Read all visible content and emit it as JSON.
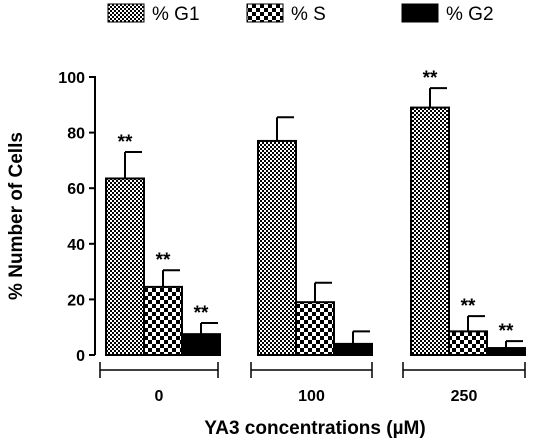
{
  "chart_data": {
    "type": "bar",
    "categories": [
      "0",
      "100",
      "250"
    ],
    "series": [
      {
        "name": "% G1",
        "values": [
          63.5,
          77,
          89
        ],
        "errors": [
          9.5,
          8.5,
          7
        ],
        "significance": [
          "**",
          "",
          "**"
        ]
      },
      {
        "name": "% S",
        "values": [
          24.5,
          19,
          8.5
        ],
        "errors": [
          6,
          7,
          5.5
        ],
        "significance": [
          "**",
          "",
          "**"
        ]
      },
      {
        "name": "% G2",
        "values": [
          7.5,
          4,
          2.5
        ],
        "errors": [
          4,
          4.5,
          2.5
        ],
        "significance": [
          "**",
          "",
          "**"
        ]
      }
    ],
    "xlabel": "YA3 concentrations (µM)",
    "ylabel": "% Number of Cells",
    "ylim": [
      0,
      100
    ],
    "yticks": [
      0,
      20,
      40,
      60,
      80,
      100
    ],
    "legend_position": "top",
    "grid": false
  }
}
